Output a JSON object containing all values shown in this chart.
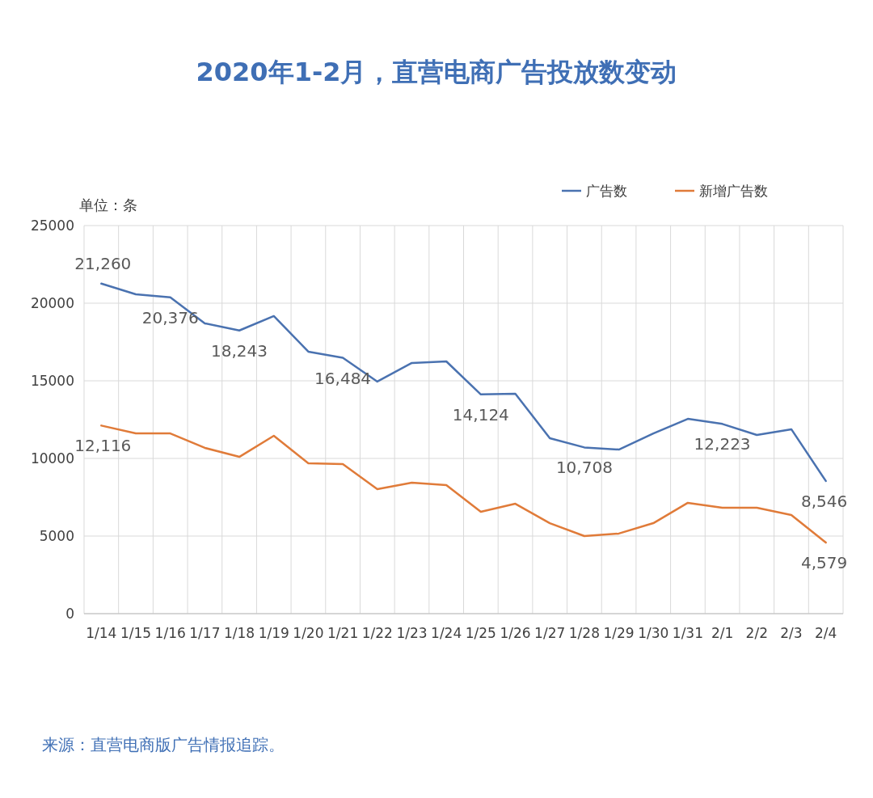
{
  "chart_data": {
    "type": "line",
    "title": "2020年1-2月，直营电商广告投放数变动",
    "ylabel": "单位：条",
    "annotations": [
      "来源：直营电商版广告情报追踪。"
    ],
    "categories": [
      "1/14",
      "1/15",
      "1/16",
      "1/17",
      "1/18",
      "1/19",
      "1/20",
      "1/21",
      "1/22",
      "1/23",
      "1/24",
      "1/25",
      "1/26",
      "1/27",
      "1/28",
      "1/29",
      "1/30",
      "1/31",
      "2/1",
      "2/2",
      "2/3",
      "2/4"
    ],
    "series": [
      {
        "name": "广告数",
        "color": "#4a72b0",
        "values": [
          21260,
          20570,
          20376,
          18700,
          18243,
          19170,
          16880,
          16484,
          14950,
          16150,
          16250,
          14124,
          14170,
          11300,
          10708,
          10570,
          11610,
          12550,
          12223,
          11510,
          11880,
          8546
        ],
        "value_labels": [
          "21,260",
          null,
          "20,376",
          null,
          "18,243",
          null,
          null,
          "16,484",
          null,
          null,
          null,
          "14,124",
          null,
          null,
          "10,708",
          null,
          null,
          null,
          "12,223",
          null,
          null,
          "8,546"
        ]
      },
      {
        "name": "新增广告数",
        "color": "#e07b39",
        "values": [
          12116,
          11610,
          11610,
          10680,
          10100,
          11460,
          9690,
          9640,
          8020,
          8440,
          8280,
          6560,
          7080,
          5830,
          5000,
          5160,
          5830,
          7140,
          6820,
          6820,
          6350,
          4579
        ],
        "value_labels": [
          "12,116",
          null,
          null,
          null,
          null,
          null,
          null,
          null,
          null,
          null,
          null,
          null,
          null,
          null,
          null,
          null,
          null,
          null,
          null,
          null,
          null,
          "4,579"
        ]
      }
    ],
    "ylim": [
      0,
      25000
    ],
    "yticks": [
      0,
      5000,
      10000,
      15000,
      20000,
      25000
    ],
    "grid": true,
    "legend": "top right",
    "marker": "none",
    "line_style": "solid"
  }
}
